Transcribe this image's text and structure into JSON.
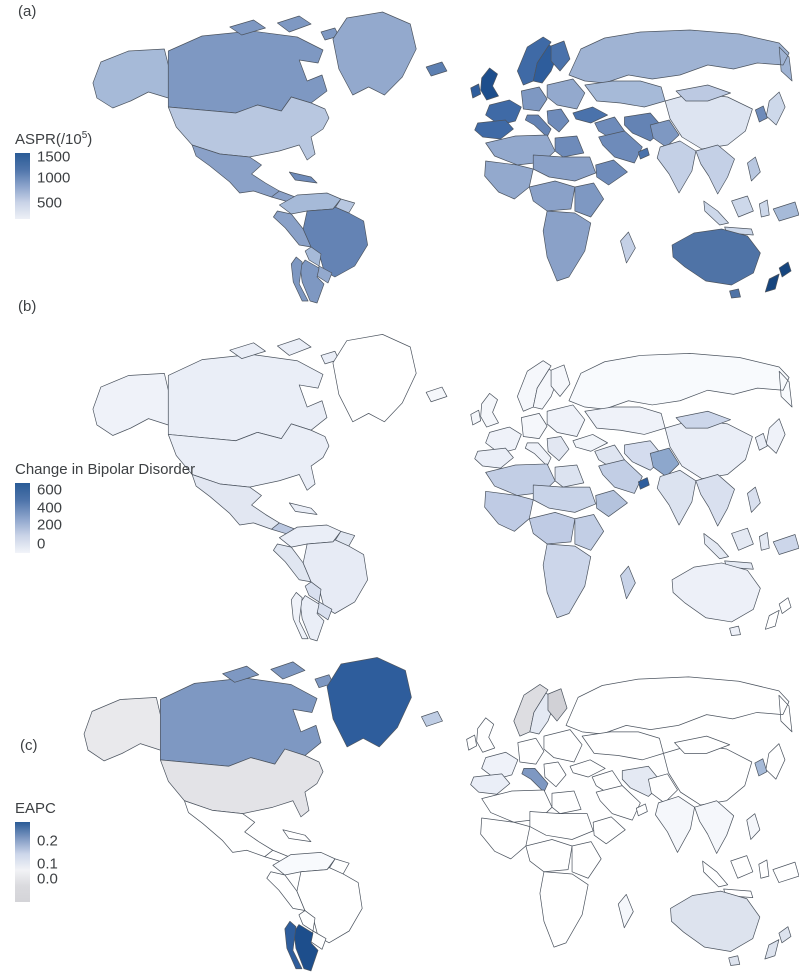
{
  "figure": {
    "background": "#ffffff",
    "border_color": "#4d5560"
  },
  "panels": {
    "a": {
      "label": "(a)",
      "legend": {
        "title_pre": "ASPR(/10",
        "title_sup": "5",
        "title_post": ")",
        "gradient": [
          "#2a5b96",
          "#4e74aa",
          "#8ba3cb",
          "#c9d3e7",
          "#edf0f6"
        ],
        "ticks": [
          {
            "label": "1500",
            "pos": "6%"
          },
          {
            "label": "1000",
            "pos": "38%"
          },
          {
            "label": "500",
            "pos": "76%"
          }
        ]
      },
      "regions": {
        "alaska": "#a6bad8",
        "canada": "#7e98c2",
        "arctic_islands": "#7e98c2",
        "greenland": "#93a9cd",
        "iceland": "#5c7fb1",
        "usa": "#b8c7e0",
        "mexico": "#8aa1c8",
        "central_america": "#8aa1c8",
        "cuba": "#6e8bba",
        "colombia_venezuela": "#a6bad8",
        "guyanas": "#b8c7e0",
        "peru_ecuador": "#8aa1c8",
        "brazil": "#6483b4",
        "bolivia": "#a6bad8",
        "paraguay_uruguay": "#93a9cd",
        "argentina": "#7e98c2",
        "chile": "#7e98c2",
        "russia": "#9fb3d3",
        "uk": "#1d4e8c",
        "ireland": "#2e5d9c",
        "norway": "#3f6aa6",
        "sweden": "#2e5d9c",
        "finland": "#4a72ab",
        "france": "#3f6aa6",
        "iberia": "#3f6aa6",
        "central_europe": "#7e98c2",
        "italy": "#6483b4",
        "eastern_europe": "#93a9cd",
        "balkans": "#6e8bba",
        "central_asia": "#a6bad8",
        "china": "#dde4f1",
        "mongolia": "#bcc9e2",
        "turkey": "#4a72ab",
        "levant": "#6e8bba",
        "saudi_arabia": "#6e8bba",
        "uae": "#4a72ab",
        "iran": "#6483b4",
        "afghanistan": "#7e98c2",
        "india": "#c4d0e6",
        "southeast_asia": "#c4d0e6",
        "philippines": "#b8c7e0",
        "japan": "#cdd8ea",
        "korea": "#6e8bba",
        "indonesia": "#cdd8ea",
        "new_guinea": "#a6bad8",
        "north_africa": "#93a9cd",
        "egypt": "#6e8bba",
        "west_africa": "#93a9cd",
        "sahel_sudan": "#8aa1c8",
        "horn_of_africa": "#6e8bba",
        "central_africa": "#8aa1c8",
        "east_africa": "#7e98c2",
        "southern_africa": "#8aa1c8",
        "madagascar": "#c4d0e6",
        "australia": "#4f73a6",
        "new_zealand": "#16457e"
      }
    },
    "b": {
      "label": "(b)",
      "legend": {
        "title_pre": "Change in Bipolar Disorder",
        "title_sup": "",
        "title_post": "",
        "gradient": [
          "#2a5b96",
          "#4e74aa",
          "#8ba3cb",
          "#c9d3e7",
          "#f2f4f9"
        ],
        "ticks": [
          {
            "label": "600",
            "pos": "10%"
          },
          {
            "label": "400",
            "pos": "36%"
          },
          {
            "label": "200",
            "pos": "60%"
          },
          {
            "label": "0",
            "pos": "87%"
          }
        ]
      },
      "regions": {
        "alaska": "#eff2f9",
        "canada": "#eaeef7",
        "arctic_islands": "#eaeef7",
        "greenland": "#ffffff",
        "iceland": "#f5f7fb",
        "usa": "#eaeef7",
        "mexico": "#e2e7f2",
        "central_america": "#bac7e0",
        "cuba": "#eaeef7",
        "colombia_venezuela": "#eaeef7",
        "guyanas": "#e0e6f1",
        "peru_ecuador": "#e0e6f1",
        "brazil": "#e7ebf5",
        "bolivia": "#d9e0ef",
        "paraguay_uruguay": "#d9e0ef",
        "argentina": "#eaeef7",
        "chile": "#eff2f9",
        "russia": "#f8fafd",
        "uk": "#f5f7fb",
        "ireland": "#f5f7fb",
        "norway": "#f5f7fb",
        "sweden": "#f5f7fb",
        "finland": "#f5f7fb",
        "france": "#eff2f9",
        "iberia": "#eaeef7",
        "central_europe": "#f5f7fb",
        "italy": "#eff2f9",
        "eastern_europe": "#eff2f9",
        "balkans": "#e2e7f2",
        "central_asia": "#eff2f9",
        "china": "#eaeef7",
        "mongolia": "#ccd6ea",
        "turkey": "#f2f5fa",
        "levant": "#dfe5f1",
        "saudi_arabia": "#c2cee5",
        "uae": "#2e5d9c",
        "iran": "#d4dcee",
        "afghanistan": "#8da7cc",
        "india": "#dce3f0",
        "southeast_asia": "#d9e0ef",
        "philippines": "#d9e0ef",
        "japan": "#eff2f9",
        "korea": "#eaeef7",
        "indonesia": "#e4e9f3",
        "new_guinea": "#ccd6ea",
        "north_africa": "#c2cee5",
        "egypt": "#dce3f0",
        "west_africa": "#bfcbe4",
        "sahel_sudan": "#c8d3e8",
        "horn_of_africa": "#b4c3dd",
        "central_africa": "#bfcbe4",
        "east_africa": "#c2cee5",
        "southern_africa": "#ccd6ea",
        "madagascar": "#c8d3e8",
        "australia": "#edf0f8",
        "new_zealand": "#ffffff"
      }
    },
    "c": {
      "label": "(c)",
      "legend": {
        "title_pre": "EAPC",
        "title_sup": "",
        "title_post": "",
        "gradient": [
          "#2a5b96",
          "#7e98c2",
          "#ccd6ea",
          "#f2f3f6",
          "#dadade",
          "#d4d4d8"
        ],
        "ticks": [
          {
            "label": "0.2",
            "pos": "24%"
          },
          {
            "label": "0.1",
            "pos": "52%"
          },
          {
            "label": "0.0",
            "pos": "71%"
          }
        ]
      },
      "regions": {
        "alaska": "#e9e9ec",
        "canada": "#7e98c2",
        "arctic_islands": "#7e98c2",
        "greenland": "#2e5d9c",
        "iceland": "#bfcde4",
        "usa": "#e3e3e7",
        "mexico": "#ffffff",
        "central_america": "#ffffff",
        "cuba": "#ffffff",
        "colombia_venezuela": "#f8fafd",
        "guyanas": "#ffffff",
        "peru_ecuador": "#ffffff",
        "brazil": "#ffffff",
        "bolivia": "#ffffff",
        "paraguay_uruguay": "#ffffff",
        "argentina": "#1d4e8c",
        "chile": "#2e5d9c",
        "russia": "#ffffff",
        "uk": "#ffffff",
        "ireland": "#ffffff",
        "norway": "#dddde1",
        "sweden": "#e4e9f3",
        "finland": "#d1d1d6",
        "france": "#eff2f9",
        "iberia": "#eaeef7",
        "central_europe": "#ffffff",
        "italy": "#7e98c2",
        "eastern_europe": "#ffffff",
        "balkans": "#ffffff",
        "central_asia": "#ffffff",
        "china": "#ffffff",
        "mongolia": "#ffffff",
        "turkey": "#ffffff",
        "levant": "#ffffff",
        "saudi_arabia": "#ffffff",
        "uae": "#ffffff",
        "iran": "#e4e9f3",
        "afghanistan": "#ffffff",
        "india": "#f5f7fb",
        "southeast_asia": "#f5f7fb",
        "philippines": "#f5f7fb",
        "japan": "#ffffff",
        "korea": "#a6bad8",
        "indonesia": "#ffffff",
        "new_guinea": "#ffffff",
        "north_africa": "#ffffff",
        "egypt": "#ffffff",
        "west_africa": "#ffffff",
        "sahel_sudan": "#ffffff",
        "horn_of_africa": "#ffffff",
        "central_africa": "#ffffff",
        "east_africa": "#ffffff",
        "southern_africa": "#ffffff",
        "madagascar": "#f5f7fb",
        "australia": "#dde3ee",
        "new_zealand": "#dde3ee"
      }
    }
  },
  "chart_data": [
    {
      "type": "heatmap",
      "variant": "world choropleth",
      "panel": "(a)",
      "measure": "ASPR(/10^5)",
      "legend_ticks": [
        1500,
        1000,
        500
      ],
      "legend_position": "left",
      "color_scale": {
        "low": "#edf0f6",
        "high": "#1d4e8c"
      },
      "estimated_values": {
        "New Zealand": 1500,
        "United Kingdom": 1450,
        "France / Spain / Portugal / Scandinavia": 1250,
        "Australia": 1150,
        "Brazil / Italy / Iran": 950,
        "Canada / Mexico / Argentina / Chile / most of Africa / Middle East": 750,
        "USA / Russia / Eastern Europe / Central Asia": 550,
        "India / Southeast Asia / Japan / Indonesia": 400,
        "China": 250
      }
    },
    {
      "type": "heatmap",
      "variant": "world choropleth",
      "panel": "(b)",
      "measure": "Change in Bipolar Disorder",
      "legend_ticks": [
        600,
        400,
        200,
        0
      ],
      "legend_position": "left",
      "color_scale": {
        "low": "#ffffff",
        "high": "#1d4e8c"
      },
      "estimated_values": {
        "United Arab Emirates (darkest spot)": 600,
        "Afghanistan": 300,
        "Saudi Arabia / Sub-Saharan Africa / Guatemala / Papua New Guinea / Mongolia": 175,
        "South & Southeast Asia / North Africa": 120,
        "Americas / Europe / China / Australia": 50,
        "Russia / Greenland / New Zealand": 0
      }
    },
    {
      "type": "heatmap",
      "variant": "world choropleth",
      "panel": "(c)",
      "measure": "EAPC",
      "legend_ticks": [
        0.2,
        0.1,
        0.0
      ],
      "legend_position": "left",
      "color_scale": {
        "negative_gray": "#d4d4d8",
        "zero": "#ffffff",
        "high": "#1d4e8c"
      },
      "estimated_values": {
        "Argentina": 0.25,
        "Greenland": 0.22,
        "Chile": 0.2,
        "Canada / Italy": 0.12,
        "South Korea": 0.08,
        "Iceland": 0.06,
        "Australia / New Zealand / Sweden / Iran": 0.03,
        "most countries": 0.0,
        "USA / Alaska / Norway / Finland (gray)": -0.05
      }
    }
  ]
}
